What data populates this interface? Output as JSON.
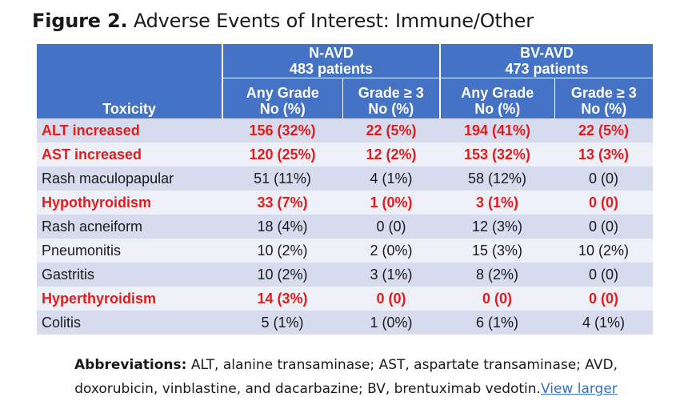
{
  "figure": {
    "title_lead": "Figure 2.",
    "title_rest": "Adverse Events of Interest: Immune/Other"
  },
  "table": {
    "toxicity_header": "Toxicity",
    "groups": [
      {
        "name": "N-AVD",
        "patients": "483 patients"
      },
      {
        "name": "BV-AVD",
        "patients": "473 patients"
      }
    ],
    "subheaders": [
      {
        "line1": "Any Grade",
        "line2": "No (%)"
      },
      {
        "line1": "Grade ≥ 3",
        "line2": "No (%)"
      },
      {
        "line1": "Any Grade",
        "line2": "No (%)"
      },
      {
        "line1": "Grade ≥ 3",
        "line2": "No (%)"
      }
    ],
    "rows": [
      {
        "toxicity": "ALT increased",
        "values": [
          "156 (32%)",
          "22 (5%)",
          "194 (41%)",
          "22 (5%)"
        ],
        "highlight": true
      },
      {
        "toxicity": "AST increased",
        "values": [
          "120 (25%)",
          "12 (2%)",
          "153 (32%)",
          "13 (3%)"
        ],
        "highlight": true
      },
      {
        "toxicity": "Rash maculopapular",
        "values": [
          "51 (11%)",
          "4 (1%)",
          "58 (12%)",
          "0 (0)"
        ],
        "highlight": false
      },
      {
        "toxicity": "Hypothyroidism",
        "values": [
          "33 (7%)",
          "1 (0%)",
          "3 (1%)",
          "0 (0)"
        ],
        "highlight": true
      },
      {
        "toxicity": "Rash acneiform",
        "values": [
          "18 (4%)",
          "0 (0)",
          "12 (3%)",
          "0 (0)"
        ],
        "highlight": false
      },
      {
        "toxicity": "Pneumonitis",
        "values": [
          "10 (2%)",
          "2 (0%)",
          "15 (3%)",
          "10 (2%)"
        ],
        "highlight": false
      },
      {
        "toxicity": "Gastritis",
        "values": [
          "10 (2%)",
          "3 (1%)",
          "8 (2%)",
          "0 (0)"
        ],
        "highlight": false
      },
      {
        "toxicity": "Hyperthyroidism",
        "values": [
          "14 (3%)",
          "0 (0)",
          "0 (0)",
          "0 (0)"
        ],
        "highlight": true
      },
      {
        "toxicity": "Colitis",
        "values": [
          "5 (1%)",
          "1 (0%)",
          "6 (1%)",
          "4 (1%)"
        ],
        "highlight": false
      }
    ]
  },
  "abbreviations": {
    "label": "Abbreviations:",
    "line1": "ALT, alanine transaminase; AST, aspartate transaminase; AVD,",
    "line2": "doxorubicin, vinblastine, and dacarbazine; BV, brentuximab vedotin.",
    "link": "View larger"
  },
  "colors": {
    "header_bg": "#4472c4",
    "row_light": "#eef0f8",
    "row_dark": "#d6dbee",
    "highlight_text": "#e21c1c",
    "link": "#3a6fc4"
  }
}
